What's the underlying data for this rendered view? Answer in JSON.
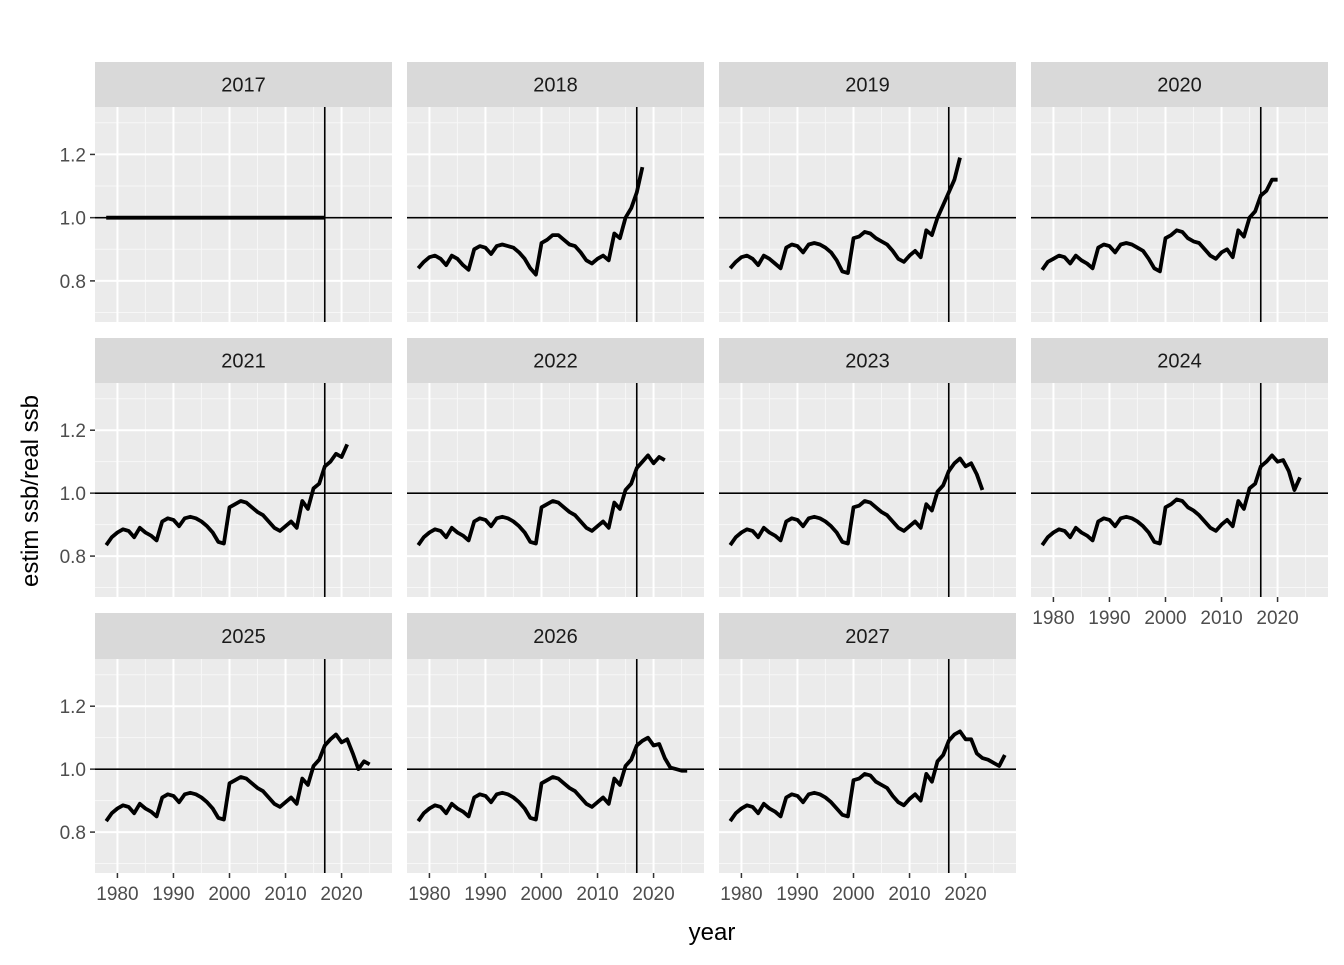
{
  "chart_data": {
    "type": "line",
    "layout": "faceted small multiples, 4 columns x 3 rows",
    "xlabel": "year",
    "ylabel": "estim ssb/real ssb",
    "x_ticks": [
      "1980",
      "1990",
      "2000",
      "2010",
      "2020"
    ],
    "y_ticks": [
      "0.8",
      "1.0",
      "1.2"
    ],
    "xlim": [
      1976,
      2029
    ],
    "ylim": [
      0.67,
      1.35
    ],
    "hline": 1.0,
    "vline": 2017,
    "grid": true,
    "line_color": "#000000",
    "panel_bg": "#ebebeb",
    "strip_bg": "#d9d9d9",
    "facets": [
      {
        "label": "2017",
        "x": [
          1978,
          2017
        ],
        "y": [
          1.0,
          1.0
        ]
      },
      {
        "label": "2018",
        "x": [
          1978,
          1979,
          1980,
          1981,
          1982,
          1983,
          1984,
          1985,
          1986,
          1987,
          1988,
          1989,
          1990,
          1991,
          1992,
          1993,
          1994,
          1995,
          1996,
          1997,
          1998,
          1999,
          2000,
          2001,
          2002,
          2003,
          2004,
          2005,
          2006,
          2007,
          2008,
          2009,
          2010,
          2011,
          2012,
          2013,
          2014,
          2015,
          2016,
          2017,
          2018
        ],
        "y": [
          0.84,
          0.86,
          0.875,
          0.88,
          0.87,
          0.85,
          0.88,
          0.87,
          0.85,
          0.835,
          0.9,
          0.91,
          0.905,
          0.885,
          0.91,
          0.915,
          0.91,
          0.905,
          0.89,
          0.87,
          0.84,
          0.82,
          0.92,
          0.93,
          0.945,
          0.945,
          0.93,
          0.915,
          0.91,
          0.89,
          0.865,
          0.855,
          0.87,
          0.88,
          0.865,
          0.95,
          0.935,
          1.0,
          1.03,
          1.08,
          1.16
        ]
      },
      {
        "label": "2019",
        "x": [
          1978,
          1979,
          1980,
          1981,
          1982,
          1983,
          1984,
          1985,
          1986,
          1987,
          1988,
          1989,
          1990,
          1991,
          1992,
          1993,
          1994,
          1995,
          1996,
          1997,
          1998,
          1999,
          2000,
          2001,
          2002,
          2003,
          2004,
          2005,
          2006,
          2007,
          2008,
          2009,
          2010,
          2011,
          2012,
          2013,
          2014,
          2015,
          2016,
          2017,
          2018,
          2019
        ],
        "y": [
          0.84,
          0.86,
          0.875,
          0.88,
          0.87,
          0.85,
          0.88,
          0.87,
          0.855,
          0.84,
          0.905,
          0.915,
          0.91,
          0.89,
          0.915,
          0.92,
          0.915,
          0.905,
          0.89,
          0.865,
          0.83,
          0.825,
          0.935,
          0.94,
          0.955,
          0.95,
          0.935,
          0.925,
          0.915,
          0.895,
          0.87,
          0.86,
          0.88,
          0.895,
          0.875,
          0.96,
          0.945,
          1.0,
          1.04,
          1.08,
          1.12,
          1.19
        ]
      },
      {
        "label": "2020",
        "x": [
          1978,
          1979,
          1980,
          1981,
          1982,
          1983,
          1984,
          1985,
          1986,
          1987,
          1988,
          1989,
          1990,
          1991,
          1992,
          1993,
          1994,
          1995,
          1996,
          1997,
          1998,
          1999,
          2000,
          2001,
          2002,
          2003,
          2004,
          2005,
          2006,
          2007,
          2008,
          2009,
          2010,
          2011,
          2012,
          2013,
          2014,
          2015,
          2016,
          2017,
          2018,
          2019,
          2020
        ],
        "y": [
          0.835,
          0.86,
          0.87,
          0.88,
          0.875,
          0.855,
          0.88,
          0.865,
          0.855,
          0.84,
          0.905,
          0.915,
          0.91,
          0.89,
          0.915,
          0.92,
          0.915,
          0.905,
          0.895,
          0.87,
          0.84,
          0.83,
          0.935,
          0.945,
          0.96,
          0.955,
          0.935,
          0.925,
          0.92,
          0.9,
          0.88,
          0.87,
          0.89,
          0.9,
          0.875,
          0.96,
          0.94,
          1.0,
          1.02,
          1.07,
          1.085,
          1.12,
          1.12
        ]
      },
      {
        "label": "2021",
        "x": [
          1978,
          1979,
          1980,
          1981,
          1982,
          1983,
          1984,
          1985,
          1986,
          1987,
          1988,
          1989,
          1990,
          1991,
          1992,
          1993,
          1994,
          1995,
          1996,
          1997,
          1998,
          1999,
          2000,
          2001,
          2002,
          2003,
          2004,
          2005,
          2006,
          2007,
          2008,
          2009,
          2010,
          2011,
          2012,
          2013,
          2014,
          2015,
          2016,
          2017,
          2018,
          2019,
          2020,
          2021
        ],
        "y": [
          0.835,
          0.86,
          0.875,
          0.885,
          0.88,
          0.86,
          0.89,
          0.875,
          0.865,
          0.85,
          0.91,
          0.92,
          0.915,
          0.895,
          0.92,
          0.925,
          0.92,
          0.91,
          0.895,
          0.875,
          0.845,
          0.84,
          0.955,
          0.965,
          0.975,
          0.97,
          0.955,
          0.94,
          0.93,
          0.91,
          0.89,
          0.88,
          0.895,
          0.91,
          0.89,
          0.975,
          0.95,
          1.015,
          1.03,
          1.085,
          1.1,
          1.125,
          1.115,
          1.155
        ]
      },
      {
        "label": "2022",
        "x": [
          1978,
          1979,
          1980,
          1981,
          1982,
          1983,
          1984,
          1985,
          1986,
          1987,
          1988,
          1989,
          1990,
          1991,
          1992,
          1993,
          1994,
          1995,
          1996,
          1997,
          1998,
          1999,
          2000,
          2001,
          2002,
          2003,
          2004,
          2005,
          2006,
          2007,
          2008,
          2009,
          2010,
          2011,
          2012,
          2013,
          2014,
          2015,
          2016,
          2017,
          2018,
          2019,
          2020,
          2021,
          2022
        ],
        "y": [
          0.835,
          0.86,
          0.875,
          0.885,
          0.88,
          0.86,
          0.89,
          0.875,
          0.865,
          0.85,
          0.91,
          0.92,
          0.915,
          0.895,
          0.92,
          0.925,
          0.92,
          0.91,
          0.895,
          0.875,
          0.845,
          0.84,
          0.955,
          0.965,
          0.975,
          0.97,
          0.955,
          0.94,
          0.93,
          0.91,
          0.89,
          0.88,
          0.895,
          0.91,
          0.89,
          0.97,
          0.95,
          1.01,
          1.03,
          1.08,
          1.1,
          1.12,
          1.095,
          1.115,
          1.105
        ]
      },
      {
        "label": "2023",
        "x": [
          1978,
          1979,
          1980,
          1981,
          1982,
          1983,
          1984,
          1985,
          1986,
          1987,
          1988,
          1989,
          1990,
          1991,
          1992,
          1993,
          1994,
          1995,
          1996,
          1997,
          1998,
          1999,
          2000,
          2001,
          2002,
          2003,
          2004,
          2005,
          2006,
          2007,
          2008,
          2009,
          2010,
          2011,
          2012,
          2013,
          2014,
          2015,
          2016,
          2017,
          2018,
          2019,
          2020,
          2021,
          2022,
          2023
        ],
        "y": [
          0.835,
          0.86,
          0.875,
          0.885,
          0.88,
          0.86,
          0.89,
          0.875,
          0.865,
          0.85,
          0.91,
          0.92,
          0.915,
          0.895,
          0.92,
          0.925,
          0.92,
          0.91,
          0.895,
          0.875,
          0.845,
          0.84,
          0.955,
          0.96,
          0.975,
          0.97,
          0.955,
          0.94,
          0.93,
          0.91,
          0.89,
          0.88,
          0.895,
          0.91,
          0.89,
          0.965,
          0.945,
          1.005,
          1.025,
          1.07,
          1.095,
          1.11,
          1.085,
          1.095,
          1.06,
          1.01
        ]
      },
      {
        "label": "2024",
        "x": [
          1978,
          1979,
          1980,
          1981,
          1982,
          1983,
          1984,
          1985,
          1986,
          1987,
          1988,
          1989,
          1990,
          1991,
          1992,
          1993,
          1994,
          1995,
          1996,
          1997,
          1998,
          1999,
          2000,
          2001,
          2002,
          2003,
          2004,
          2005,
          2006,
          2007,
          2008,
          2009,
          2010,
          2011,
          2012,
          2013,
          2014,
          2015,
          2016,
          2017,
          2018,
          2019,
          2020,
          2021,
          2022,
          2023,
          2024
        ],
        "y": [
          0.835,
          0.86,
          0.875,
          0.885,
          0.88,
          0.86,
          0.89,
          0.875,
          0.865,
          0.85,
          0.91,
          0.92,
          0.915,
          0.895,
          0.92,
          0.925,
          0.92,
          0.91,
          0.895,
          0.875,
          0.845,
          0.84,
          0.955,
          0.965,
          0.98,
          0.975,
          0.955,
          0.945,
          0.93,
          0.91,
          0.89,
          0.88,
          0.9,
          0.915,
          0.895,
          0.975,
          0.95,
          1.015,
          1.03,
          1.085,
          1.1,
          1.12,
          1.1,
          1.105,
          1.07,
          1.01,
          1.05
        ]
      },
      {
        "label": "2025",
        "x": [
          1978,
          1979,
          1980,
          1981,
          1982,
          1983,
          1984,
          1985,
          1986,
          1987,
          1988,
          1989,
          1990,
          1991,
          1992,
          1993,
          1994,
          1995,
          1996,
          1997,
          1998,
          1999,
          2000,
          2001,
          2002,
          2003,
          2004,
          2005,
          2006,
          2007,
          2008,
          2009,
          2010,
          2011,
          2012,
          2013,
          2014,
          2015,
          2016,
          2017,
          2018,
          2019,
          2020,
          2021,
          2022,
          2023,
          2024,
          2025
        ],
        "y": [
          0.835,
          0.86,
          0.875,
          0.885,
          0.88,
          0.86,
          0.89,
          0.875,
          0.865,
          0.85,
          0.91,
          0.92,
          0.915,
          0.895,
          0.92,
          0.925,
          0.92,
          0.91,
          0.895,
          0.875,
          0.845,
          0.84,
          0.955,
          0.965,
          0.975,
          0.97,
          0.955,
          0.94,
          0.93,
          0.91,
          0.89,
          0.88,
          0.895,
          0.91,
          0.89,
          0.97,
          0.95,
          1.01,
          1.03,
          1.075,
          1.095,
          1.11,
          1.085,
          1.095,
          1.05,
          1.0,
          1.025,
          1.015
        ]
      },
      {
        "label": "2026",
        "x": [
          1978,
          1979,
          1980,
          1981,
          1982,
          1983,
          1984,
          1985,
          1986,
          1987,
          1988,
          1989,
          1990,
          1991,
          1992,
          1993,
          1994,
          1995,
          1996,
          1997,
          1998,
          1999,
          2000,
          2001,
          2002,
          2003,
          2004,
          2005,
          2006,
          2007,
          2008,
          2009,
          2010,
          2011,
          2012,
          2013,
          2014,
          2015,
          2016,
          2017,
          2018,
          2019,
          2020,
          2021,
          2022,
          2023,
          2024,
          2025,
          2026
        ],
        "y": [
          0.835,
          0.86,
          0.875,
          0.885,
          0.88,
          0.86,
          0.89,
          0.875,
          0.865,
          0.85,
          0.91,
          0.92,
          0.915,
          0.895,
          0.92,
          0.925,
          0.92,
          0.91,
          0.895,
          0.875,
          0.845,
          0.84,
          0.955,
          0.965,
          0.975,
          0.97,
          0.955,
          0.94,
          0.93,
          0.91,
          0.89,
          0.88,
          0.895,
          0.91,
          0.89,
          0.97,
          0.95,
          1.01,
          1.03,
          1.075,
          1.09,
          1.1,
          1.075,
          1.08,
          1.035,
          1.005,
          1.0,
          0.995,
          0.995
        ]
      },
      {
        "label": "2027",
        "x": [
          1978,
          1979,
          1980,
          1981,
          1982,
          1983,
          1984,
          1985,
          1986,
          1987,
          1988,
          1989,
          1990,
          1991,
          1992,
          1993,
          1994,
          1995,
          1996,
          1997,
          1998,
          1999,
          2000,
          2001,
          2002,
          2003,
          2004,
          2005,
          2006,
          2007,
          2008,
          2009,
          2010,
          2011,
          2012,
          2013,
          2014,
          2015,
          2016,
          2017,
          2018,
          2019,
          2020,
          2021,
          2022,
          2023,
          2024,
          2025,
          2026,
          2027
        ],
        "y": [
          0.835,
          0.86,
          0.875,
          0.885,
          0.88,
          0.86,
          0.89,
          0.875,
          0.865,
          0.85,
          0.91,
          0.92,
          0.915,
          0.895,
          0.92,
          0.925,
          0.92,
          0.91,
          0.895,
          0.875,
          0.855,
          0.85,
          0.965,
          0.97,
          0.985,
          0.98,
          0.96,
          0.95,
          0.94,
          0.915,
          0.895,
          0.885,
          0.905,
          0.92,
          0.9,
          0.985,
          0.96,
          1.025,
          1.045,
          1.09,
          1.11,
          1.12,
          1.095,
          1.095,
          1.05,
          1.035,
          1.03,
          1.02,
          1.01,
          1.045
        ]
      }
    ]
  }
}
